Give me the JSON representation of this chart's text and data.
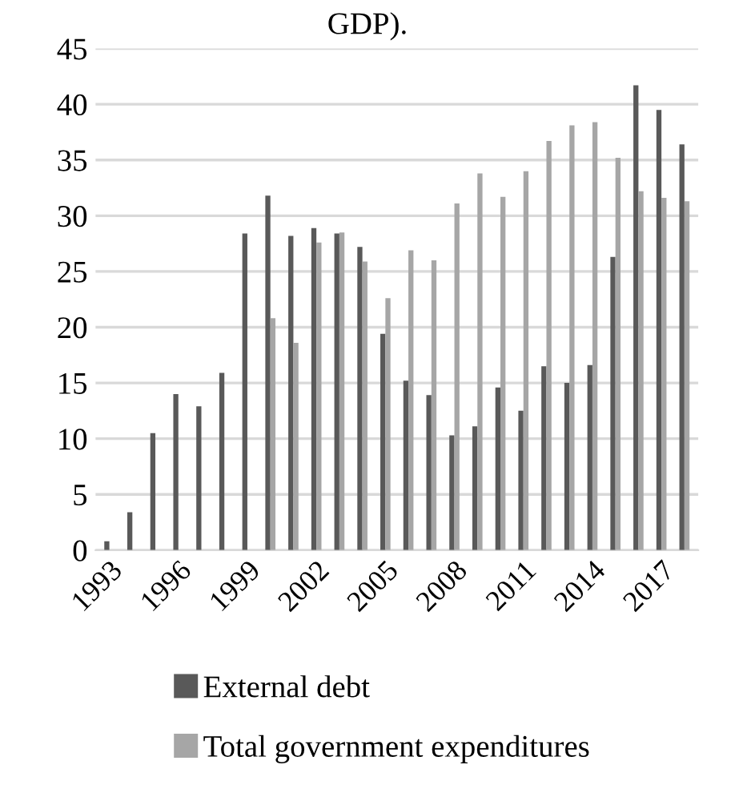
{
  "chart_data": {
    "type": "bar",
    "title": "GDP).",
    "categories": [
      "1993",
      null,
      null,
      "1996",
      null,
      null,
      "1999",
      null,
      null,
      "2002",
      null,
      null,
      "2005",
      null,
      null,
      "2008",
      null,
      null,
      "2011",
      null,
      null,
      "2014",
      null,
      null,
      "2017",
      null
    ],
    "series": [
      {
        "name": "External debt",
        "color": "#595959",
        "values": [
          0.8,
          3.4,
          10.5,
          14,
          12.9,
          15.9,
          28.4,
          31.8,
          28.2,
          28.9,
          28.4,
          27.2,
          19.4,
          15.2,
          13.9,
          10.3,
          11.1,
          14.6,
          12.5,
          16.5,
          15,
          16.6,
          26.3,
          41.7,
          39.5,
          36.4
        ]
      },
      {
        "name": "Total government expenditures",
        "color": "#a6a6a6",
        "values": [
          null,
          null,
          null,
          null,
          null,
          null,
          null,
          20.8,
          18.6,
          27.6,
          28.5,
          25.9,
          22.6,
          26.9,
          26,
          31.1,
          33.8,
          31.7,
          34,
          36.7,
          38.1,
          38.4,
          35.2,
          32.2,
          31.6,
          31.3
        ]
      }
    ],
    "ylim": [
      0,
      45
    ],
    "yticks": [
      0,
      5,
      10,
      15,
      20,
      25,
      30,
      35,
      40,
      45
    ],
    "grid": "y",
    "legend": "bottom"
  }
}
